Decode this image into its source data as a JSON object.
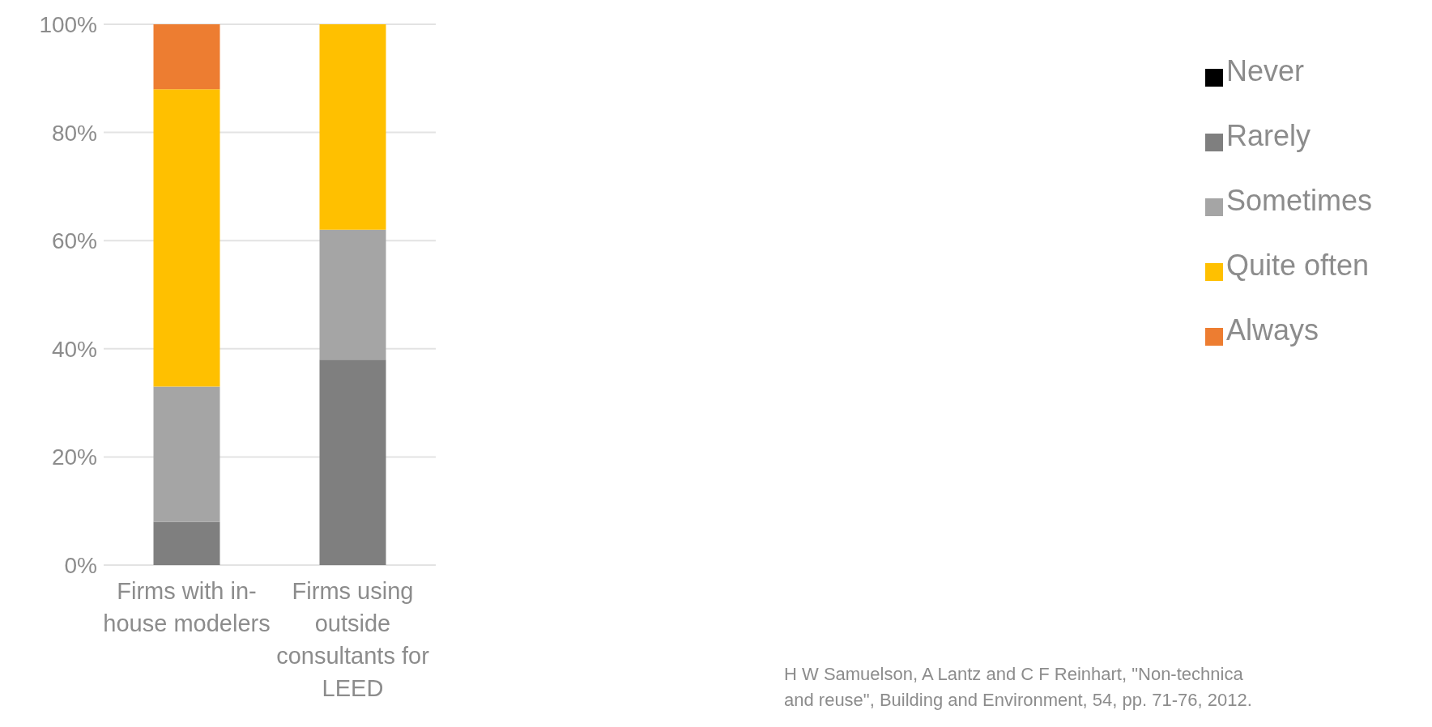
{
  "chart_data": {
    "type": "bar",
    "stacked": true,
    "categories": [
      "Firms with in-house modelers",
      "Firms using outside consultants for LEED"
    ],
    "series": [
      {
        "name": "Never",
        "color": "#000000",
        "values": [
          0,
          0
        ]
      },
      {
        "name": "Rarely",
        "color": "#7f7f7f",
        "values": [
          8,
          38
        ]
      },
      {
        "name": "Sometimes",
        "color": "#a5a5a5",
        "values": [
          25,
          24
        ]
      },
      {
        "name": "Quite often",
        "color": "#ffc000",
        "values": [
          55,
          38
        ]
      },
      {
        "name": "Always",
        "color": "#ed7d31",
        "values": [
          12,
          0
        ]
      }
    ],
    "ylim": [
      0,
      100
    ],
    "yticks": [
      {
        "value": 0,
        "label": "0%"
      },
      {
        "value": 20,
        "label": "20%"
      },
      {
        "value": 40,
        "label": "40%"
      },
      {
        "value": 60,
        "label": "60%"
      },
      {
        "value": 80,
        "label": "80%"
      },
      {
        "value": 100,
        "label": "100%"
      }
    ],
    "grid": "y",
    "legend": "right",
    "annotations": [
      "H W Samuelson, A Lantz and C F Reinhart, \"Non-technica",
      "and reuse\", Building and Environment, 54, pp. 71-76, 2012."
    ]
  }
}
